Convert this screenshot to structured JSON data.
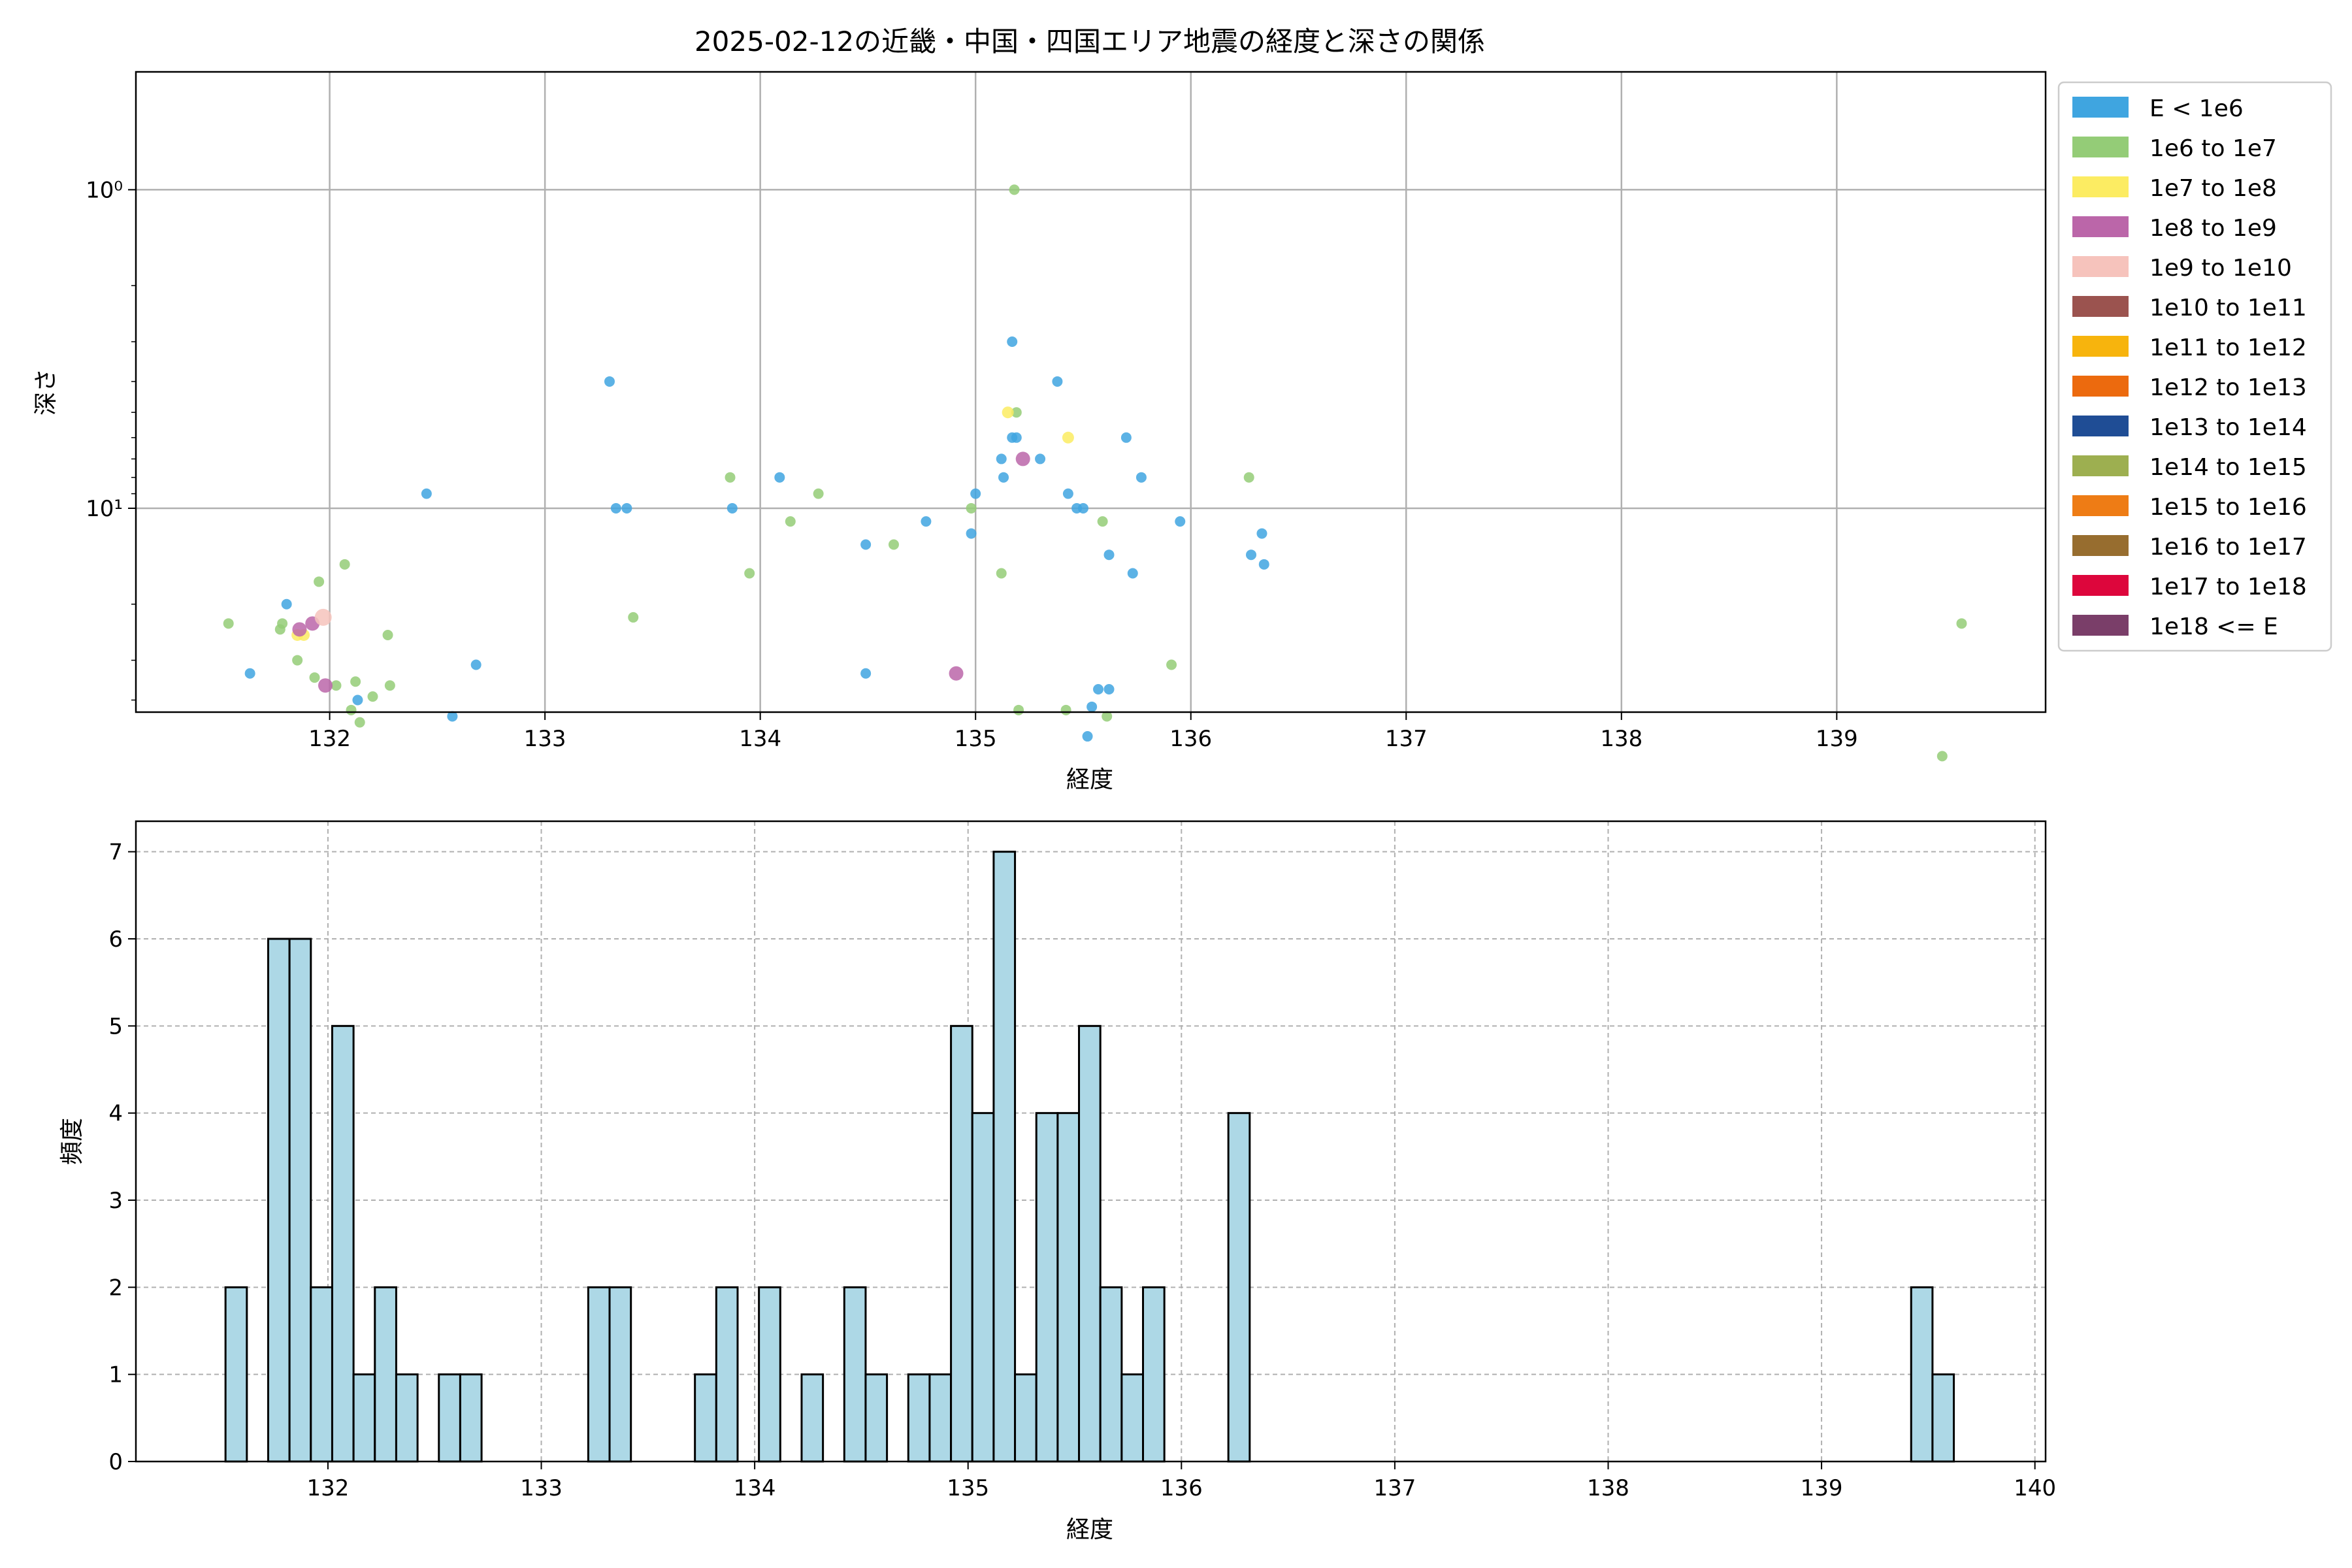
{
  "figure": {
    "title": "2025-02-12の近畿・中国・四国エリア地震の経度と深さの関係"
  },
  "chart_data": [
    {
      "type": "scatter",
      "xlabel": "経度",
      "ylabel": "深さ",
      "xlim": [
        131.1,
        139.97
      ],
      "ylim_log10": [
        -0.37,
        1.64
      ],
      "y_scale": "log",
      "y_inverted": true,
      "grid": true,
      "x_ticks": [
        132,
        133,
        134,
        135,
        136,
        137,
        138,
        139
      ],
      "y_ticks": [
        {
          "value": 1,
          "label": "10⁰"
        },
        {
          "value": 10,
          "label": "10¹"
        }
      ],
      "legend": {
        "position": "outside-right",
        "entries": [
          {
            "label": "E < 1e6",
            "color": "#3fa5e0"
          },
          {
            "label": "1e6 to 1e7",
            "color": "#94cc77"
          },
          {
            "label": "1e7 to 1e8",
            "color": "#fcec62"
          },
          {
            "label": "1e8 to 1e9",
            "color": "#bb66a9"
          },
          {
            "label": "1e9 to 1e10",
            "color": "#f6c3bc"
          },
          {
            "label": "1e10 to 1e11",
            "color": "#9b534f"
          },
          {
            "label": "1e11 to 1e12",
            "color": "#f7b40d"
          },
          {
            "label": "1e12 to 1e13",
            "color": "#ec6a0e"
          },
          {
            "label": "1e13 to 1e14",
            "color": "#1f4d95"
          },
          {
            "label": "1e14 to 1e15",
            "color": "#9daf50"
          },
          {
            "label": "1e15 to 1e16",
            "color": "#ee7c15"
          },
          {
            "label": "1e16 to 1e17",
            "color": "#976d2f"
          },
          {
            "label": "1e17 to 1e18",
            "color": "#dd063c"
          },
          {
            "label": "1e18 <= E",
            "color": "#7a3e69"
          }
        ]
      },
      "series": [
        {
          "name": "E < 1e6",
          "points": [
            [
              131.63,
              33
            ],
            [
              131.8,
              20
            ],
            [
              132.13,
              40
            ],
            [
              132.45,
              9
            ],
            [
              132.57,
              45
            ],
            [
              132.68,
              31
            ],
            [
              133.3,
              4
            ],
            [
              133.33,
              10
            ],
            [
              133.38,
              10
            ],
            [
              133.87,
              10
            ],
            [
              134.09,
              8
            ],
            [
              134.49,
              13
            ],
            [
              134.49,
              33
            ],
            [
              134.77,
              11
            ],
            [
              134.98,
              12
            ],
            [
              135.0,
              9
            ],
            [
              135.12,
              7
            ],
            [
              135.13,
              8
            ],
            [
              135.17,
              3
            ],
            [
              135.17,
              6
            ],
            [
              135.19,
              6
            ],
            [
              135.3,
              7
            ],
            [
              135.38,
              4
            ],
            [
              135.43,
              9
            ],
            [
              135.47,
              10
            ],
            [
              135.5,
              10
            ],
            [
              135.52,
              52
            ],
            [
              135.54,
              42
            ],
            [
              135.57,
              37
            ],
            [
              135.62,
              37
            ],
            [
              135.62,
              14
            ],
            [
              135.7,
              6
            ],
            [
              135.73,
              16
            ],
            [
              135.77,
              8
            ],
            [
              135.95,
              11
            ],
            [
              136.28,
              14
            ],
            [
              136.33,
              12
            ],
            [
              136.34,
              15
            ]
          ]
        },
        {
          "name": "1e6 to 1e7",
          "points": [
            [
              131.53,
              23
            ],
            [
              131.77,
              24
            ],
            [
              131.78,
              23
            ],
            [
              131.85,
              30
            ],
            [
              131.93,
              34
            ],
            [
              131.95,
              17
            ],
            [
              132.03,
              36
            ],
            [
              132.07,
              15
            ],
            [
              132.1,
              43
            ],
            [
              132.12,
              35
            ],
            [
              132.14,
              47
            ],
            [
              132.2,
              39
            ],
            [
              132.27,
              25
            ],
            [
              132.28,
              36
            ],
            [
              133.41,
              22
            ],
            [
              133.86,
              8
            ],
            [
              133.95,
              16
            ],
            [
              134.14,
              11
            ],
            [
              134.27,
              9
            ],
            [
              134.62,
              13
            ],
            [
              134.98,
              10
            ],
            [
              135.12,
              16
            ],
            [
              135.18,
              1
            ],
            [
              135.19,
              5
            ],
            [
              135.2,
              43
            ],
            [
              135.42,
              43
            ],
            [
              135.59,
              11
            ],
            [
              135.61,
              45
            ],
            [
              135.91,
              31
            ],
            [
              136.27,
              8
            ],
            [
              139.49,
              60
            ],
            [
              139.58,
              23
            ]
          ]
        },
        {
          "name": "1e7 to 1e8",
          "points": [
            [
              131.85,
              25
            ],
            [
              131.88,
              25
            ],
            [
              135.15,
              5
            ],
            [
              135.43,
              6
            ]
          ]
        },
        {
          "name": "1e8 to 1e9",
          "points": [
            [
              131.86,
              24
            ],
            [
              131.92,
              23
            ],
            [
              131.98,
              36
            ],
            [
              134.91,
              33
            ],
            [
              135.22,
              7
            ]
          ]
        },
        {
          "name": "1e9 to 1e10",
          "points": [
            [
              131.97,
              22
            ]
          ]
        }
      ]
    },
    {
      "type": "bar",
      "xlabel": "経度",
      "ylabel": "頻度",
      "xlim": [
        131.1,
        140.05
      ],
      "ylim": [
        0,
        7.35
      ],
      "grid": true,
      "bin_width": 0.1,
      "x_ticks": [
        132,
        133,
        134,
        135,
        136,
        137,
        138,
        139,
        140
      ],
      "y_ticks": [
        0,
        1,
        2,
        3,
        4,
        5,
        6,
        7
      ],
      "bar_color": "#add8e6",
      "edge_color": "#000000",
      "bin_left_edges": [
        131.52,
        131.72,
        131.82,
        131.92,
        132.02,
        132.12,
        132.22,
        132.32,
        132.52,
        132.62,
        133.22,
        133.32,
        133.72,
        133.82,
        134.02,
        134.22,
        134.42,
        134.52,
        134.72,
        134.82,
        134.92,
        135.02,
        135.12,
        135.22,
        135.32,
        135.42,
        135.52,
        135.62,
        135.72,
        135.82,
        136.22,
        139.42,
        139.52
      ],
      "counts": [
        2,
        6,
        6,
        2,
        5,
        1,
        2,
        1,
        1,
        1,
        2,
        2,
        1,
        2,
        2,
        1,
        2,
        1,
        1,
        1,
        5,
        4,
        7,
        1,
        4,
        4,
        5,
        2,
        1,
        2,
        4,
        2,
        1
      ]
    }
  ]
}
